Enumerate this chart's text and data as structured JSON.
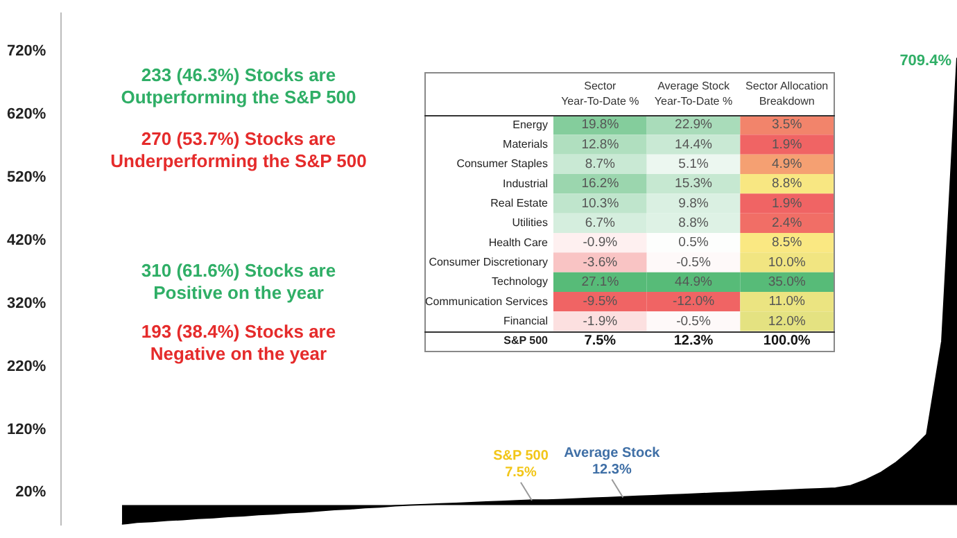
{
  "chart_data": [
    {
      "type": "area",
      "color": "#000000",
      "categories": [
        null,
        null,
        null,
        null,
        null,
        null,
        null,
        null,
        null,
        null,
        null,
        null,
        null,
        null,
        null,
        null,
        null,
        null,
        null,
        null,
        null,
        null,
        null,
        null,
        null,
        null,
        null,
        null,
        null,
        null,
        null,
        null,
        null,
        null,
        null,
        null,
        null,
        null,
        null,
        null,
        null,
        null,
        null,
        null,
        null,
        null,
        null,
        null,
        null,
        null,
        null,
        null,
        null,
        null,
        null,
        null,
        null,
        null,
        null,
        null
      ],
      "values": [
        null,
        null,
        null,
        null,
        -30,
        -27,
        -26,
        -24,
        -23,
        -21,
        -20,
        -18,
        -17,
        -15,
        -14,
        -12,
        -11,
        -9,
        -7,
        -6,
        -4,
        -3,
        -1,
        0,
        1,
        2,
        3,
        4,
        5,
        6,
        7,
        8,
        8,
        9,
        10,
        11,
        12,
        13,
        14,
        15,
        16,
        17,
        18,
        19,
        20,
        21,
        22,
        23,
        24,
        25,
        26,
        27,
        31,
        40,
        52,
        68,
        88,
        112,
        260,
        709.4
      ],
      "ylim": [
        -31,
        780
      ],
      "yticks": [
        {
          "value": 20,
          "label": "20%"
        },
        {
          "value": 120,
          "label": "120%"
        },
        {
          "value": 220,
          "label": "220%"
        },
        {
          "value": 320,
          "label": "320%"
        },
        {
          "value": 420,
          "label": "420%"
        },
        {
          "value": 520,
          "label": "520%"
        },
        {
          "value": 620,
          "label": "620%"
        },
        {
          "value": 720,
          "label": "720%"
        }
      ],
      "tick_labels": "y",
      "annotations": [
        "233 (46.3%) Stocks are\nOutperforming the S&P 500",
        "270 (53.7%) Stocks are\nUnderperforming the S&P 500",
        "310 (61.6%) Stocks are\nPositive on the year",
        "193 (38.4%) Stocks are\nNegative on the year",
        {
          "text": "S&P 500\n7.5%",
          "y": 7.5
        },
        {
          "text": "Average Stock\n12.3%",
          "y": 12.3
        },
        "709.4%"
      ]
    },
    {
      "type": "heatmap",
      "categories": [
        "Sector\nYear-To-Date %",
        "Average Stock\nYear-To-Date %",
        "Sector Allocation\nBreakdown"
      ],
      "y_categories": [
        "Energy",
        "Materials",
        "Consumer Staples",
        "Industrial",
        "Real Estate",
        "Utilities",
        "Health Care",
        "Consumer Discretionary",
        "Technology",
        "Communication Services",
        "Financial",
        "S&P 500"
      ],
      "cells": [
        [
          19.8,
          22.9,
          3.5
        ],
        [
          12.8,
          14.4,
          1.9
        ],
        [
          8.7,
          5.1,
          4.9
        ],
        [
          16.2,
          15.3,
          8.8
        ],
        [
          10.3,
          9.8,
          1.9
        ],
        [
          6.7,
          8.8,
          2.4
        ],
        [
          -0.9,
          0.5,
          8.5
        ],
        [
          -3.6,
          -0.5,
          10.0
        ],
        [
          27.1,
          44.9,
          35.0
        ],
        [
          -9.5,
          -12.0,
          11.0
        ],
        [
          -1.9,
          -0.5,
          12.0
        ],
        [
          7.5,
          12.3,
          100.0
        ]
      ],
      "cell_labels": [
        [
          "19.8%",
          "22.9%",
          "3.5%"
        ],
        [
          "12.8%",
          "14.4%",
          "1.9%"
        ],
        [
          "8.7%",
          "5.1%",
          "4.9%"
        ],
        [
          "16.2%",
          "15.3%",
          "8.8%"
        ],
        [
          "10.3%",
          "9.8%",
          "1.9%"
        ],
        [
          "6.7%",
          "8.8%",
          "2.4%"
        ],
        [
          "-0.9%",
          "0.5%",
          "8.5%"
        ],
        [
          "-3.6%",
          "-0.5%",
          "10.0%"
        ],
        [
          "27.1%",
          "44.9%",
          "35.0%"
        ],
        [
          "-9.5%",
          "-12.0%",
          "11.0%"
        ],
        [
          "-1.9%",
          "-0.5%",
          "12.0%"
        ],
        [
          "7.5%",
          "12.3%",
          "100.0%"
        ]
      ],
      "data_labels": true
    }
  ]
}
